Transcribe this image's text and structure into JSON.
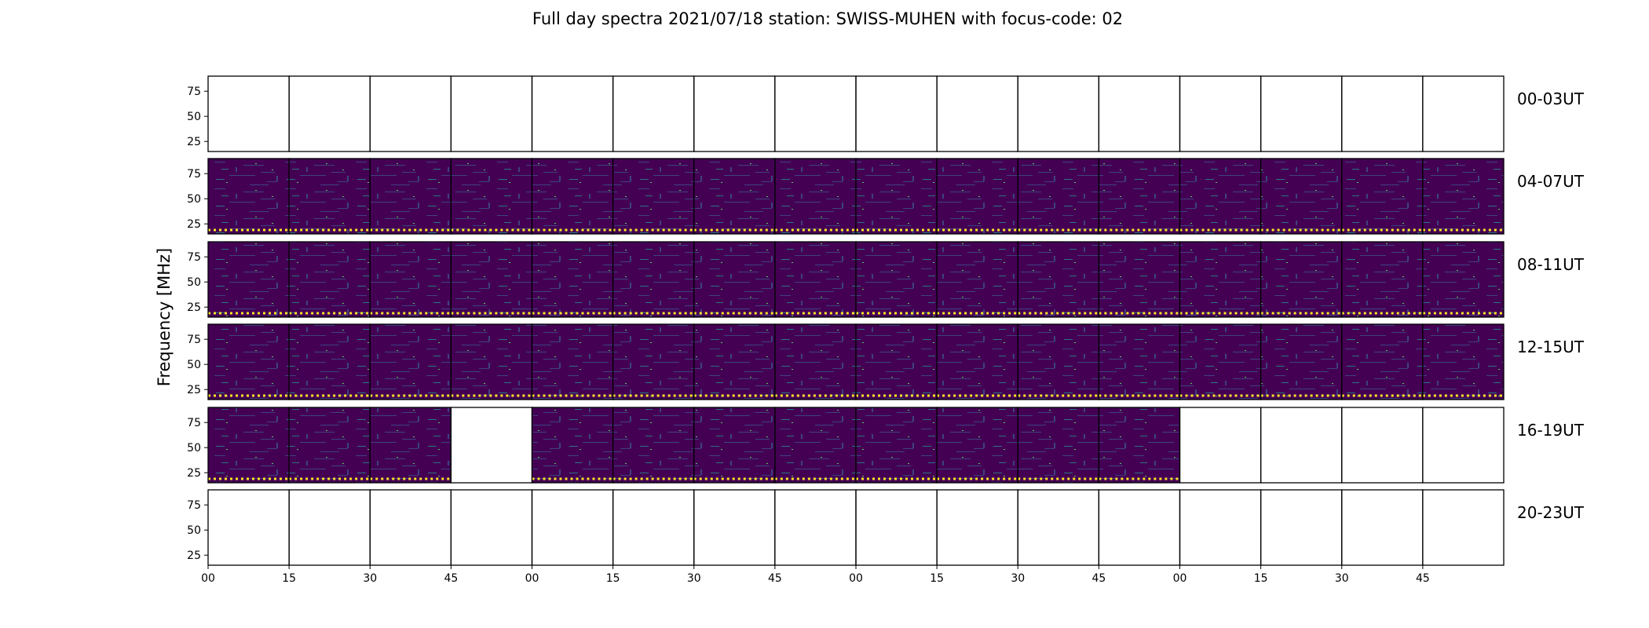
{
  "chart_data": {
    "type": "heatmap",
    "title": "Full day spectra 2021/07/18 station: SWISS-MUHEN with focus-code: 02",
    "ylabel": "Frequency [MHz]",
    "xlabel": "",
    "ylim": [
      15,
      90
    ],
    "y_ticks": [
      "75",
      "50",
      "25"
    ],
    "x_ticks": [
      "00",
      "15",
      "30",
      "45",
      "00",
      "15",
      "30",
      "45",
      "00",
      "15",
      "30",
      "45",
      "00",
      "15",
      "30",
      "45"
    ],
    "colormap": [
      "#440154",
      "#3b528b",
      "#21918c",
      "#5ec962",
      "#fde725"
    ],
    "rows": [
      {
        "label": "00-03UT",
        "panels": [
          0,
          0,
          0,
          0,
          0,
          0,
          0,
          0,
          0,
          0,
          0,
          0,
          0,
          0,
          0,
          0
        ]
      },
      {
        "label": "04-07UT",
        "panels": [
          1,
          1,
          1,
          1,
          1,
          1,
          1,
          1,
          1,
          1,
          1,
          1,
          1,
          1,
          1,
          1
        ]
      },
      {
        "label": "08-11UT",
        "panels": [
          1,
          1,
          1,
          1,
          1,
          1,
          1,
          1,
          1,
          1,
          1,
          1,
          1,
          1,
          1,
          1
        ]
      },
      {
        "label": "12-15UT",
        "panels": [
          1,
          1,
          1,
          1,
          1,
          1,
          1,
          1,
          1,
          1,
          1,
          1,
          1,
          1,
          1,
          1
        ]
      },
      {
        "label": "16-19UT",
        "panels": [
          1,
          1,
          1,
          0,
          1,
          1,
          1,
          1,
          1,
          1,
          1,
          1,
          0,
          0,
          0,
          0
        ]
      },
      {
        "label": "20-23UT",
        "panels": [
          0,
          0,
          0,
          0,
          0,
          0,
          0,
          0,
          0,
          0,
          0,
          0,
          0,
          0,
          0,
          0
        ]
      }
    ]
  }
}
